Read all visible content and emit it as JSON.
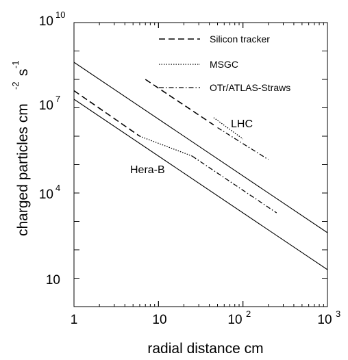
{
  "chart_data": {
    "type": "line",
    "x_scale": "log",
    "y_scale": "log",
    "xlim": [
      1,
      1000
    ],
    "ylim": [
      1,
      10000000000
    ],
    "grid": false,
    "legend_placement": "top-right",
    "xlabel": "radial distance  cm",
    "ylabel": {
      "main": "charged particles cm",
      "sup1": "-2",
      "s": "s",
      "sup2": "-1"
    },
    "x_ticks": [
      {
        "base": "1",
        "exp": ""
      },
      {
        "base": "10",
        "exp": ""
      },
      {
        "base": "10",
        "exp": "2"
      },
      {
        "base": "10",
        "exp": "3"
      }
    ],
    "y_ticks": [
      {
        "base": "10",
        "exp": ""
      },
      {
        "base": "10",
        "exp": "4"
      },
      {
        "base": "10",
        "exp": "7"
      },
      {
        "base": "10",
        "exp": "10"
      }
    ],
    "legend": [
      {
        "label": "Silicon tracker",
        "style": "dashed"
      },
      {
        "label": "MSGC",
        "style": "dotted"
      },
      {
        "label": "OTr/ATLAS-Straws",
        "style": "dashdot"
      }
    ],
    "annotations": {
      "lhc": "LHC",
      "herab": "Hera-B"
    },
    "series": [
      {
        "x": [
          1,
          1000
        ],
        "y": [
          400000000,
          400
        ],
        "style": "solid"
      },
      {
        "x": [
          1,
          1000
        ],
        "y": [
          20000000,
          20
        ],
        "style": "solid"
      },
      {
        "x": [
          7,
          45
        ],
        "y": [
          100000000,
          2500000
        ],
        "style": "dashed"
      },
      {
        "x": [
          45,
          100
        ],
        "y": [
          4500000,
          800000
        ],
        "style": "dotted"
      },
      {
        "x": [
          50,
          200
        ],
        "y": [
          2000000,
          150000
        ],
        "style": "dashdot"
      },
      {
        "x": [
          1,
          6
        ],
        "y": [
          40000000,
          1000000
        ],
        "style": "dashed"
      },
      {
        "x": [
          6,
          25
        ],
        "y": [
          1000000,
          200000
        ],
        "style": "dotted"
      },
      {
        "x": [
          25,
          250
        ],
        "y": [
          200000,
          2000
        ],
        "style": "dashdot"
      }
    ]
  }
}
